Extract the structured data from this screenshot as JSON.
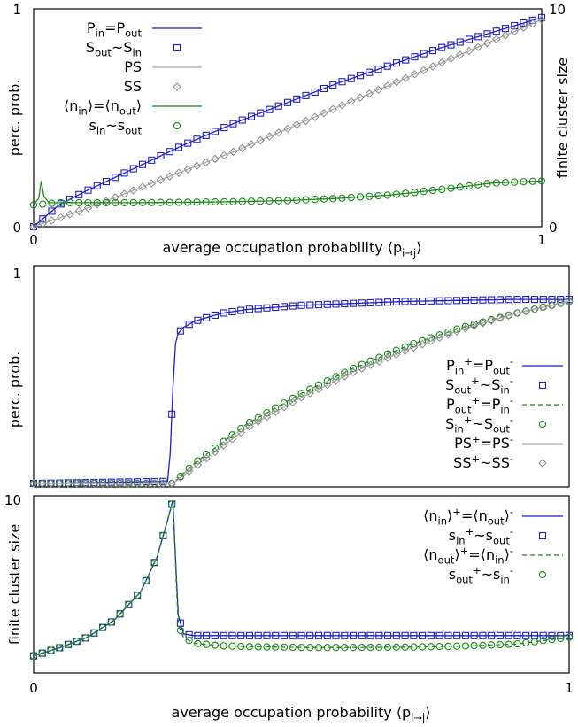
{
  "chart_data": [
    {
      "type": "line",
      "panel": "top",
      "xlabel": "average occupation probability ⟨p_{i→j}⟩",
      "ylabel_left": "perc. prob.",
      "ylabel_right": "finite cluster size",
      "xlim": [
        0,
        1
      ],
      "ylim_left": [
        0,
        1
      ],
      "ylim_right": [
        0,
        10
      ],
      "xticks": [
        "0",
        "1"
      ],
      "yticks_left": [
        "0",
        "1"
      ],
      "yticks_right": [
        "0",
        "10"
      ],
      "legend_position": "top-left",
      "grid": false,
      "series": [
        {
          "name": "P_{in}=P_{out}",
          "style": "line",
          "color": "#1f1fc8",
          "axis": "left",
          "x": [
            0,
            0.05,
            0.1,
            0.2,
            0.3,
            0.4,
            0.5,
            0.6,
            0.7,
            0.8,
            0.9,
            1.0
          ],
          "y": [
            0.0,
            0.1,
            0.16,
            0.27,
            0.38,
            0.48,
            0.57,
            0.66,
            0.74,
            0.82,
            0.89,
            0.96
          ]
        },
        {
          "name": "S_{out}~S_{in}",
          "style": "square",
          "color": "#1f1fc8",
          "axis": "left",
          "x": [
            0,
            0.05,
            0.1,
            0.2,
            0.3,
            0.4,
            0.5,
            0.6,
            0.7,
            0.8,
            0.9,
            1.0
          ],
          "y": [
            0.0,
            0.1,
            0.16,
            0.27,
            0.38,
            0.48,
            0.57,
            0.66,
            0.74,
            0.82,
            0.89,
            0.96
          ]
        },
        {
          "name": "P_S",
          "style": "line",
          "color": "#aaaaaa",
          "axis": "left",
          "x": [
            0,
            0.1,
            0.2,
            0.3,
            0.4,
            0.5,
            0.6,
            0.7,
            0.8,
            0.9,
            1.0
          ],
          "y": [
            0.0,
            0.08,
            0.17,
            0.26,
            0.35,
            0.45,
            0.55,
            0.65,
            0.75,
            0.85,
            0.95
          ]
        },
        {
          "name": "S_S",
          "style": "diamond",
          "color": "#888888",
          "axis": "left",
          "x": [
            0,
            0.1,
            0.2,
            0.3,
            0.4,
            0.5,
            0.6,
            0.7,
            0.8,
            0.9,
            1.0
          ],
          "y": [
            0.0,
            0.08,
            0.17,
            0.26,
            0.35,
            0.45,
            0.55,
            0.65,
            0.75,
            0.85,
            0.95
          ]
        },
        {
          "name": "⟨n_{in}⟩=⟨n_{out}⟩",
          "style": "line",
          "color": "#1a8a1a",
          "axis": "right",
          "x": [
            0,
            0.01,
            0.015,
            0.02,
            0.03,
            0.05,
            0.1,
            0.2,
            0.3,
            0.4,
            0.5,
            0.6,
            0.7,
            0.8,
            0.9,
            1.0
          ],
          "y": [
            1.0,
            1.3,
            2.1,
            1.4,
            1.1,
            1.1,
            1.1,
            1.1,
            1.12,
            1.15,
            1.2,
            1.3,
            1.45,
            1.7,
            2.0,
            2.1
          ]
        },
        {
          "name": "s_{in}~s_{out}",
          "style": "circle",
          "color": "#1a8a1a",
          "axis": "right",
          "x": [
            0,
            0.05,
            0.1,
            0.2,
            0.3,
            0.4,
            0.5,
            0.6,
            0.7,
            0.8,
            0.9,
            1.0
          ],
          "y": [
            1.0,
            1.1,
            1.1,
            1.1,
            1.12,
            1.15,
            1.2,
            1.3,
            1.45,
            1.7,
            2.0,
            2.1
          ]
        }
      ]
    },
    {
      "type": "line",
      "panel": "middle",
      "ylabel": "perc. prob.",
      "xlim": [
        0,
        1
      ],
      "ylim": [
        0,
        1
      ],
      "yticks": [
        "1"
      ],
      "legend_position": "bottom-right",
      "grid": false,
      "series": [
        {
          "name": "P_{in}^{+}=P_{out}^{-}",
          "style": "line",
          "color": "#1f1fc8",
          "x": [
            0,
            0.25,
            0.255,
            0.26,
            0.265,
            0.27,
            0.28,
            0.3,
            0.35,
            0.4,
            0.5,
            0.6,
            0.7,
            0.8,
            0.9,
            1.0
          ],
          "y": [
            0.0,
            0.01,
            0.15,
            0.47,
            0.7,
            0.75,
            0.78,
            0.81,
            0.85,
            0.87,
            0.89,
            0.9,
            0.91,
            0.915,
            0.92,
            0.92
          ]
        },
        {
          "name": "S_{out}^{+}~S_{in}^{-}",
          "style": "square",
          "color": "#1f1fc8",
          "x": [
            0,
            0.25,
            0.255,
            0.26,
            0.265,
            0.27,
            0.28,
            0.3,
            0.35,
            0.4,
            0.5,
            0.6,
            0.7,
            0.8,
            0.9,
            1.0
          ],
          "y": [
            0.0,
            0.01,
            0.15,
            0.47,
            0.7,
            0.75,
            0.78,
            0.81,
            0.85,
            0.87,
            0.89,
            0.9,
            0.91,
            0.915,
            0.92,
            0.92
          ]
        },
        {
          "name": "P_{out}^{+}=P_{in}^{-}",
          "style": "dashed",
          "color": "#1a8a1a",
          "x": [
            0,
            0.26,
            0.3,
            0.35,
            0.4,
            0.5,
            0.6,
            0.7,
            0.8,
            0.9,
            1.0
          ],
          "y": [
            0.0,
            0.0,
            0.1,
            0.2,
            0.3,
            0.45,
            0.58,
            0.69,
            0.78,
            0.85,
            0.91
          ]
        },
        {
          "name": "S_{in}^{+}~S_{out}^{-}",
          "style": "circle",
          "color": "#1a8a1a",
          "x": [
            0,
            0.26,
            0.3,
            0.35,
            0.4,
            0.5,
            0.6,
            0.7,
            0.8,
            0.9,
            1.0
          ],
          "y": [
            0.0,
            0.0,
            0.1,
            0.2,
            0.3,
            0.45,
            0.58,
            0.69,
            0.78,
            0.85,
            0.91
          ]
        },
        {
          "name": "P_S^{+}=P_S^{-}",
          "style": "line",
          "color": "#aaaaaa",
          "x": [
            0,
            0.26,
            0.3,
            0.35,
            0.4,
            0.5,
            0.6,
            0.7,
            0.8,
            0.9,
            1.0
          ],
          "y": [
            0.0,
            0.0,
            0.08,
            0.18,
            0.28,
            0.43,
            0.56,
            0.67,
            0.77,
            0.85,
            0.91
          ]
        },
        {
          "name": "S_S^{+}~S_S^{-}",
          "style": "diamond",
          "color": "#888888",
          "x": [
            0,
            0.26,
            0.3,
            0.35,
            0.4,
            0.5,
            0.6,
            0.7,
            0.8,
            0.9,
            1.0
          ],
          "y": [
            0.0,
            0.0,
            0.08,
            0.18,
            0.28,
            0.43,
            0.56,
            0.67,
            0.77,
            0.85,
            0.91
          ]
        }
      ]
    },
    {
      "type": "line",
      "panel": "bottom",
      "xlabel": "average occupation probability ⟨p_{i→j}⟩",
      "ylabel": "finite cluster size",
      "xlim": [
        0,
        1
      ],
      "ylim": [
        0,
        10
      ],
      "xticks": [
        "0",
        "1"
      ],
      "yticks": [
        "10"
      ],
      "legend_position": "top-right",
      "grid": false,
      "series": [
        {
          "name": "⟨n_{in}⟩^{+}=⟨n_{out}⟩^{-}",
          "style": "line",
          "color": "#1f1fc8",
          "x": [
            0,
            0.05,
            0.1,
            0.15,
            0.2,
            0.23,
            0.25,
            0.26,
            0.27,
            0.28,
            0.3,
            0.4,
            0.5,
            0.6,
            0.7,
            0.8,
            0.9,
            1.0
          ],
          "y": [
            0.8,
            1.3,
            1.9,
            2.9,
            4.6,
            6.6,
            8.8,
            10,
            3.2,
            2.1,
            2.0,
            2.0,
            2.0,
            2.0,
            2.0,
            2.0,
            2.0,
            2.0
          ]
        },
        {
          "name": "s_{in}^{+}~s_{out}^{-}",
          "style": "square",
          "color": "#1f1fc8",
          "x": [
            0,
            0.05,
            0.1,
            0.15,
            0.2,
            0.23,
            0.25,
            0.26,
            0.27,
            0.28,
            0.3,
            0.4,
            0.5,
            0.6,
            0.7,
            0.8,
            0.9,
            1.0
          ],
          "y": [
            0.8,
            1.3,
            1.9,
            2.9,
            4.6,
            6.6,
            8.8,
            10,
            3.2,
            2.1,
            2.0,
            2.0,
            2.0,
            2.0,
            2.0,
            2.0,
            2.0,
            2.0
          ]
        },
        {
          "name": "⟨n_{out}⟩^{+}=⟨n_{in}⟩^{-}",
          "style": "dashed",
          "color": "#1a8a1a",
          "x": [
            0,
            0.05,
            0.1,
            0.15,
            0.2,
            0.23,
            0.25,
            0.26,
            0.27,
            0.28,
            0.3,
            0.35,
            0.4,
            0.5,
            0.6,
            0.7,
            0.8,
            0.9,
            1.0
          ],
          "y": [
            0.8,
            1.3,
            1.9,
            2.9,
            4.6,
            6.6,
            8.8,
            10,
            2.6,
            1.9,
            1.55,
            1.4,
            1.35,
            1.3,
            1.3,
            1.32,
            1.38,
            1.5,
            1.9
          ]
        },
        {
          "name": "s_{out}^{+}~s_{in}^{-}",
          "style": "circle",
          "color": "#1a8a1a",
          "x": [
            0,
            0.05,
            0.1,
            0.15,
            0.2,
            0.23,
            0.25,
            0.26,
            0.27,
            0.28,
            0.3,
            0.35,
            0.4,
            0.5,
            0.6,
            0.7,
            0.8,
            0.9,
            1.0
          ],
          "y": [
            0.8,
            1.3,
            1.9,
            2.9,
            4.6,
            6.6,
            8.8,
            10,
            2.6,
            1.9,
            1.55,
            1.4,
            1.35,
            1.3,
            1.3,
            1.32,
            1.38,
            1.5,
            1.9
          ]
        }
      ]
    }
  ]
}
